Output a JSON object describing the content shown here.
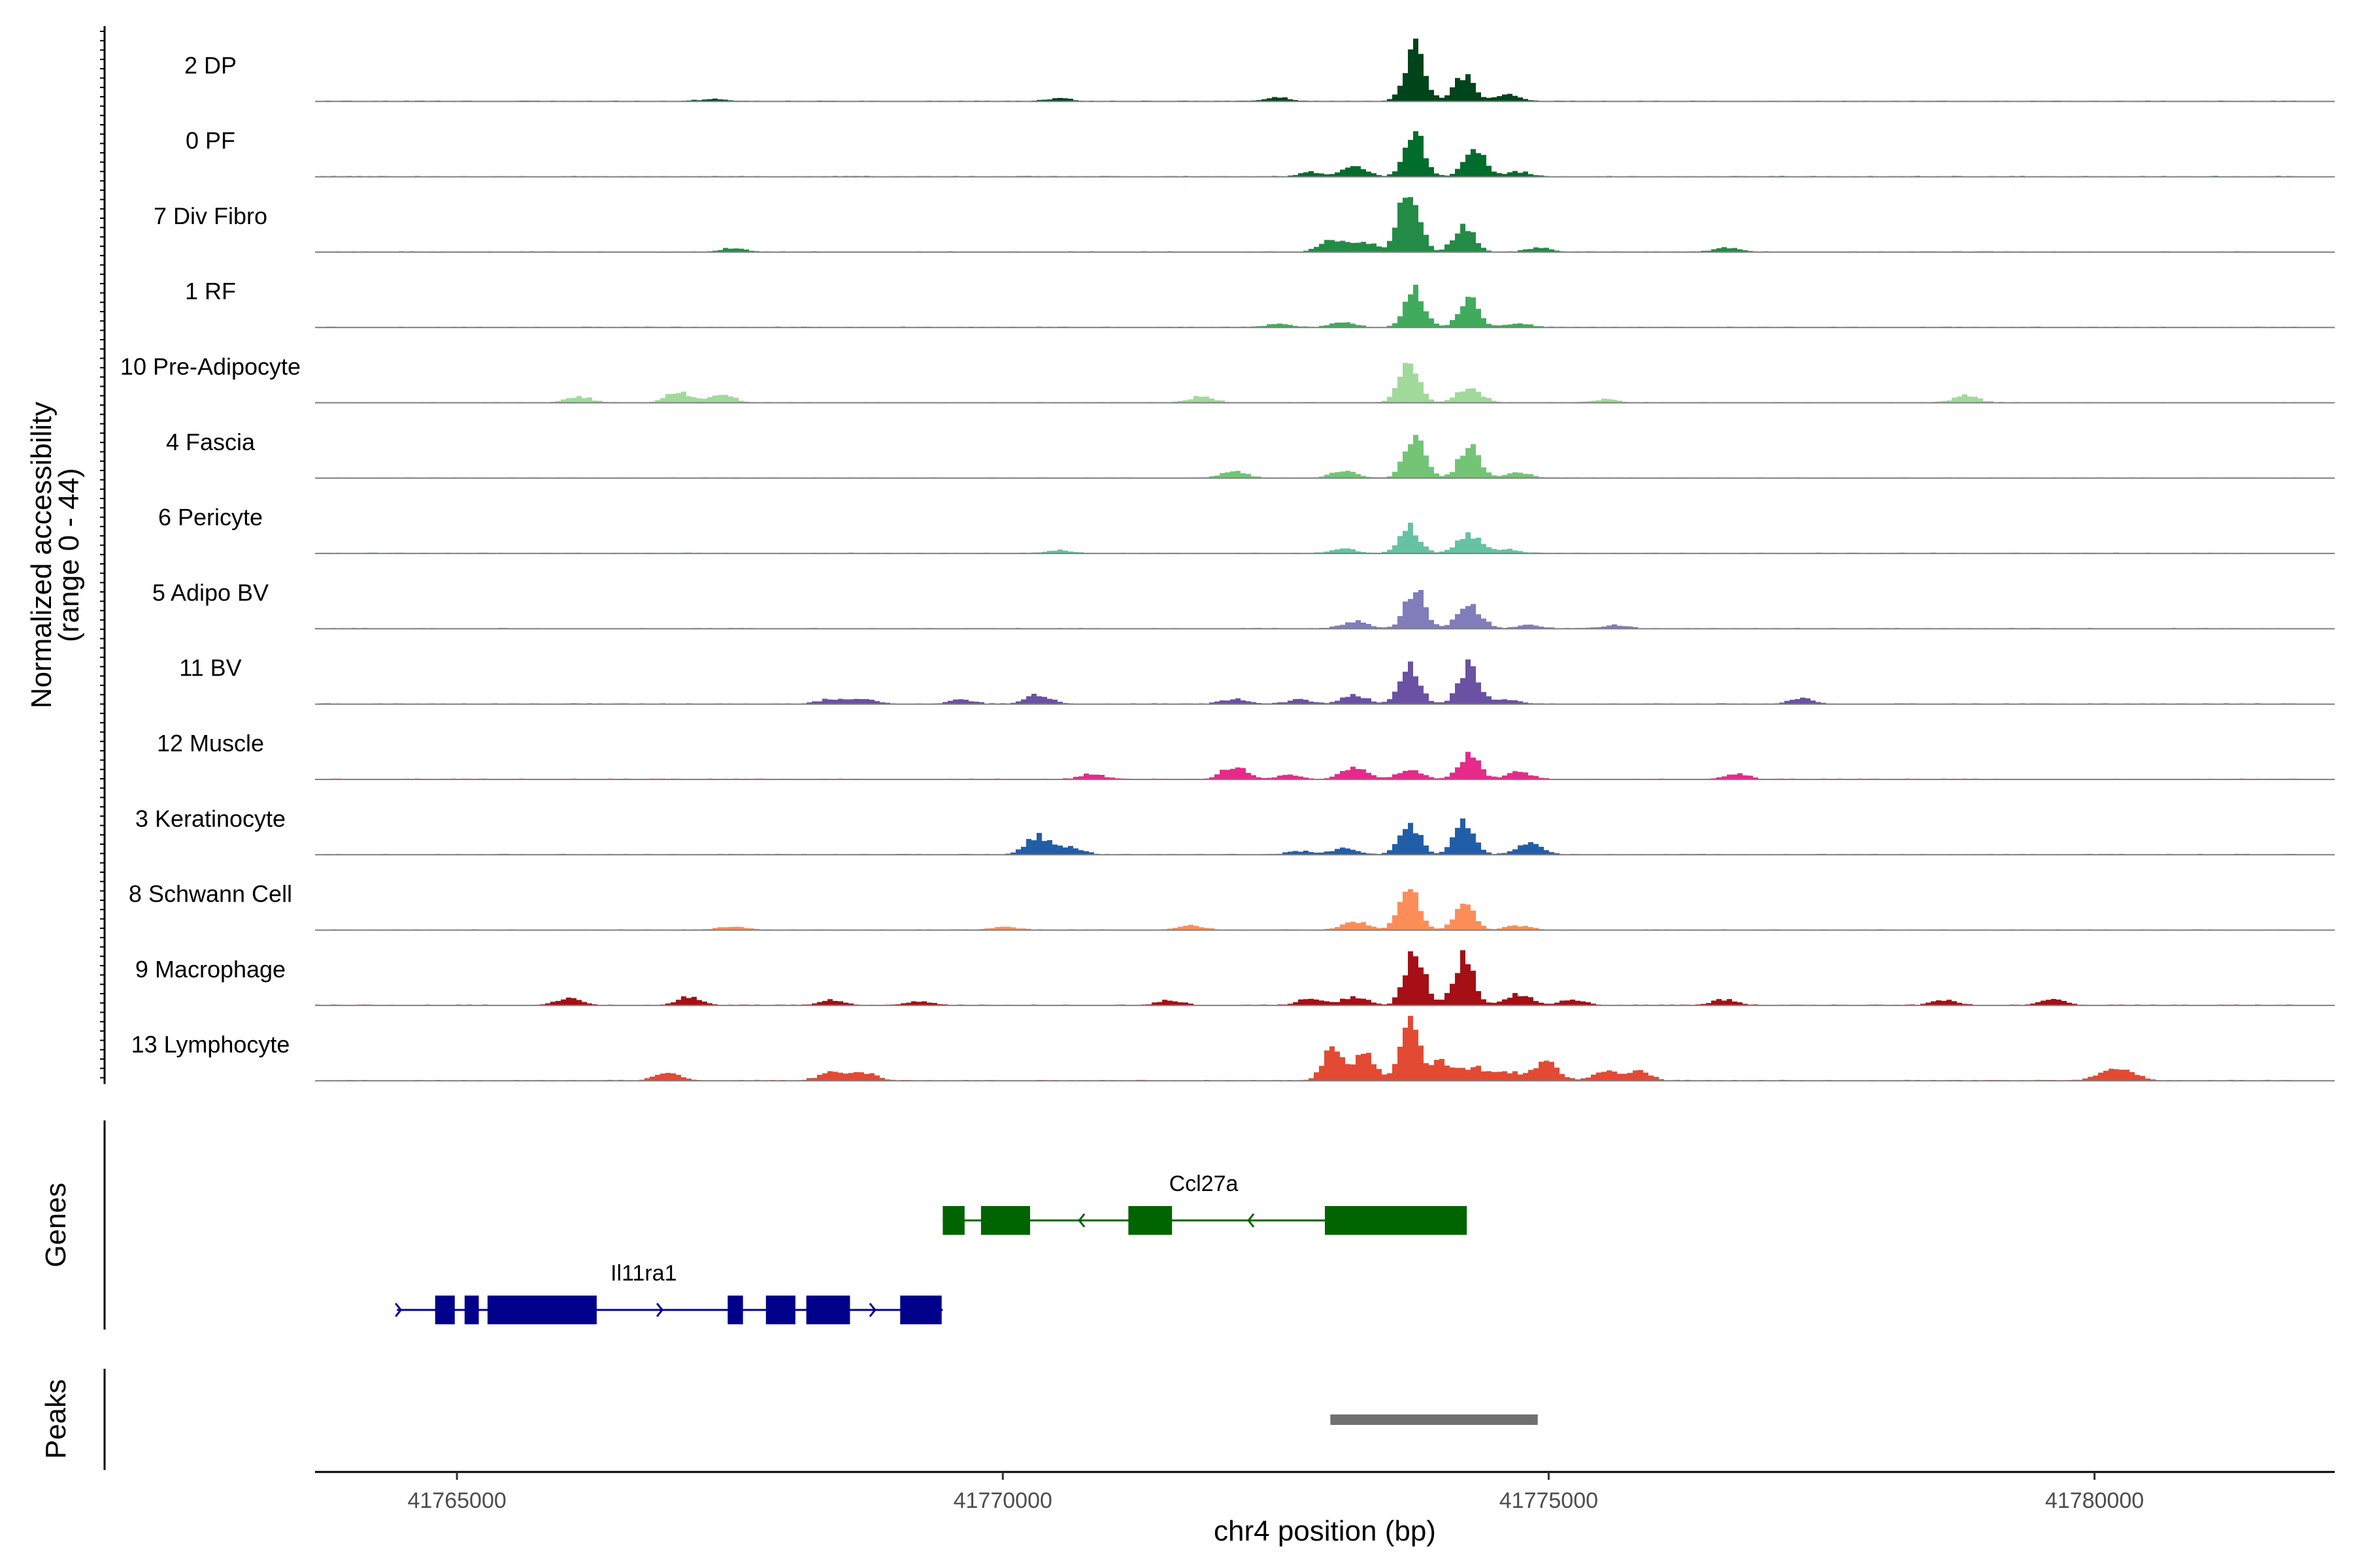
{
  "chart_data": {
    "type": "area",
    "ylabel": "Normalized accessibility\n(range 0 - 44)",
    "y_range": [
      0,
      44
    ],
    "xlabel": "chr4 position (bp)",
    "x_range": [
      41763700,
      41782200
    ],
    "x_ticks": [
      41765000,
      41770000,
      41775000,
      41780000
    ],
    "tracks": [
      {
        "name": "2 DP",
        "color": "#00441b",
        "peaks": [
          {
            "x": 41773750,
            "h": 0.75
          },
          {
            "x": 41774200,
            "h": 0.35
          },
          {
            "x": 41774600,
            "h": 0.09
          },
          {
            "x": 41772500,
            "h": 0.05
          },
          {
            "x": 41770500,
            "h": 0.04
          },
          {
            "x": 41767300,
            "h": 0.03
          }
        ]
      },
      {
        "name": "0 PF",
        "color": "#006d2c",
        "peaks": [
          {
            "x": 41773750,
            "h": 0.58
          },
          {
            "x": 41774300,
            "h": 0.42
          },
          {
            "x": 41773200,
            "h": 0.15
          },
          {
            "x": 41774700,
            "h": 0.07
          },
          {
            "x": 41772800,
            "h": 0.06
          }
        ]
      },
      {
        "name": "7 Div Fibro",
        "color": "#238b45",
        "peaks": [
          {
            "x": 41773700,
            "h": 0.9
          },
          {
            "x": 41774200,
            "h": 0.38
          },
          {
            "x": 41773000,
            "h": 0.16
          },
          {
            "x": 41773300,
            "h": 0.13
          },
          {
            "x": 41774900,
            "h": 0.06
          },
          {
            "x": 41776600,
            "h": 0.06
          },
          {
            "x": 41767500,
            "h": 0.05
          }
        ]
      },
      {
        "name": "1 RF",
        "color": "#41ab5d",
        "peaks": [
          {
            "x": 41773750,
            "h": 0.5
          },
          {
            "x": 41774250,
            "h": 0.38
          },
          {
            "x": 41773100,
            "h": 0.07
          },
          {
            "x": 41774700,
            "h": 0.05
          },
          {
            "x": 41772500,
            "h": 0.04
          }
        ]
      },
      {
        "name": "10 Pre-Adipocyte",
        "color": "#a1d99b",
        "peaks": [
          {
            "x": 41773700,
            "h": 0.55
          },
          {
            "x": 41774250,
            "h": 0.2
          },
          {
            "x": 41767000,
            "h": 0.14
          },
          {
            "x": 41767400,
            "h": 0.12
          },
          {
            "x": 41766100,
            "h": 0.08
          },
          {
            "x": 41771800,
            "h": 0.08
          },
          {
            "x": 41778800,
            "h": 0.1
          },
          {
            "x": 41775500,
            "h": 0.05
          }
        ]
      },
      {
        "name": "4 Fascia",
        "color": "#74c476",
        "peaks": [
          {
            "x": 41773750,
            "h": 0.6
          },
          {
            "x": 41774250,
            "h": 0.45
          },
          {
            "x": 41772100,
            "h": 0.09
          },
          {
            "x": 41773100,
            "h": 0.1
          },
          {
            "x": 41774700,
            "h": 0.07
          }
        ]
      },
      {
        "name": "6 Pericyte",
        "color": "#66c2a4",
        "peaks": [
          {
            "x": 41773700,
            "h": 0.38
          },
          {
            "x": 41774250,
            "h": 0.25
          },
          {
            "x": 41773100,
            "h": 0.06
          },
          {
            "x": 41770500,
            "h": 0.04
          },
          {
            "x": 41774600,
            "h": 0.05
          }
        ]
      },
      {
        "name": "5 Adipo BV",
        "color": "#807dba",
        "peaks": [
          {
            "x": 41773750,
            "h": 0.55
          },
          {
            "x": 41774250,
            "h": 0.3
          },
          {
            "x": 41773200,
            "h": 0.1
          },
          {
            "x": 41774800,
            "h": 0.05
          },
          {
            "x": 41775600,
            "h": 0.05
          }
        ]
      },
      {
        "name": "11 BV",
        "color": "#6a51a3",
        "peaks": [
          {
            "x": 41773700,
            "h": 0.52
          },
          {
            "x": 41774250,
            "h": 0.55
          },
          {
            "x": 41773200,
            "h": 0.12
          },
          {
            "x": 41770300,
            "h": 0.12
          },
          {
            "x": 41768400,
            "h": 0.07
          },
          {
            "x": 41768700,
            "h": 0.07
          },
          {
            "x": 41769600,
            "h": 0.06
          },
          {
            "x": 41772100,
            "h": 0.07
          },
          {
            "x": 41772700,
            "h": 0.06
          },
          {
            "x": 41774600,
            "h": 0.06
          },
          {
            "x": 41777300,
            "h": 0.07
          }
        ]
      },
      {
        "name": "12 Muscle",
        "color": "#e7298a",
        "peaks": [
          {
            "x": 41774250,
            "h": 0.35
          },
          {
            "x": 41773700,
            "h": 0.13
          },
          {
            "x": 41773200,
            "h": 0.16
          },
          {
            "x": 41772100,
            "h": 0.18
          },
          {
            "x": 41770800,
            "h": 0.07
          },
          {
            "x": 41774700,
            "h": 0.1
          },
          {
            "x": 41776700,
            "h": 0.07
          },
          {
            "x": 41772600,
            "h": 0.06
          }
        ]
      },
      {
        "name": "3 Keratinocyte",
        "color": "#225ea8",
        "peaks": [
          {
            "x": 41773700,
            "h": 0.45
          },
          {
            "x": 41774200,
            "h": 0.45
          },
          {
            "x": 41770300,
            "h": 0.25
          },
          {
            "x": 41774800,
            "h": 0.15
          },
          {
            "x": 41773100,
            "h": 0.08
          },
          {
            "x": 41772700,
            "h": 0.05
          },
          {
            "x": 41770600,
            "h": 0.1
          }
        ]
      },
      {
        "name": "8 Schwann Cell",
        "color": "#fc8d59",
        "peaks": [
          {
            "x": 41773700,
            "h": 0.6
          },
          {
            "x": 41774200,
            "h": 0.35
          },
          {
            "x": 41773200,
            "h": 0.12
          },
          {
            "x": 41771700,
            "h": 0.06
          },
          {
            "x": 41774700,
            "h": 0.06
          },
          {
            "x": 41767500,
            "h": 0.05
          },
          {
            "x": 41770000,
            "h": 0.04
          }
        ]
      },
      {
        "name": "9 Macrophage",
        "color": "#a50f15",
        "peaks": [
          {
            "x": 41773750,
            "h": 0.72
          },
          {
            "x": 41774200,
            "h": 0.65
          },
          {
            "x": 41774700,
            "h": 0.15
          },
          {
            "x": 41773200,
            "h": 0.12
          },
          {
            "x": 41767100,
            "h": 0.12
          },
          {
            "x": 41766000,
            "h": 0.09
          },
          {
            "x": 41776600,
            "h": 0.08
          },
          {
            "x": 41779600,
            "h": 0.09
          },
          {
            "x": 41772800,
            "h": 0.09
          },
          {
            "x": 41771500,
            "h": 0.07
          },
          {
            "x": 41768400,
            "h": 0.07
          },
          {
            "x": 41769200,
            "h": 0.06
          },
          {
            "x": 41778600,
            "h": 0.07
          },
          {
            "x": 41775200,
            "h": 0.07
          }
        ]
      },
      {
        "name": "13 Lymphocyte",
        "color": "#e34a33",
        "peaks": [
          {
            "x": 41773700,
            "h": 0.75
          },
          {
            "x": 41773000,
            "h": 0.42
          },
          {
            "x": 41773300,
            "h": 0.38
          },
          {
            "x": 41774000,
            "h": 0.25
          },
          {
            "x": 41774300,
            "h": 0.18
          },
          {
            "x": 41774950,
            "h": 0.25
          },
          {
            "x": 41766900,
            "h": 0.12
          },
          {
            "x": 41768400,
            "h": 0.12
          },
          {
            "x": 41768700,
            "h": 0.11
          },
          {
            "x": 41775500,
            "h": 0.12
          },
          {
            "x": 41775800,
            "h": 0.12
          },
          {
            "x": 41780100,
            "h": 0.12
          },
          {
            "x": 41780300,
            "h": 0.1
          },
          {
            "x": 41774600,
            "h": 0.12
          }
        ]
      }
    ],
    "genes": {
      "label": "Genes",
      "items": [
        {
          "name": "Ccl27a",
          "strand": "-",
          "color": "#006400",
          "start": 41769450,
          "end": 41774250,
          "exons": [
            [
              41769450,
              41769650
            ],
            [
              41769800,
              41770250
            ],
            [
              41771150,
              41771550
            ],
            [
              41772950,
              41774250
            ]
          ]
        },
        {
          "name": "Il11ra1",
          "strand": "+",
          "color": "#00008b",
          "start": 41764450,
          "end": 41769450,
          "exons": [
            [
              41764800,
              41764980
            ],
            [
              41765070,
              41765200
            ],
            [
              41765280,
              41766280
            ],
            [
              41767480,
              41767620
            ],
            [
              41767830,
              41768100
            ],
            [
              41768200,
              41768600
            ],
            [
              41769060,
              41769440
            ]
          ]
        }
      ]
    },
    "peaks_track": {
      "label": "Peaks",
      "color": "#707070",
      "regions": [
        [
          41773000,
          41774900
        ]
      ]
    }
  }
}
